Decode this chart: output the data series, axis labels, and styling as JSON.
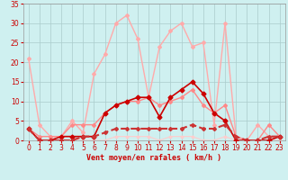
{
  "background_color": "#cff0f0",
  "grid_color": "#aacccc",
  "xlabel": "Vent moyen/en rafales ( km/h )",
  "xlabel_color": "#cc0000",
  "tick_color": "#cc0000",
  "xlim": [
    -0.5,
    23.5
  ],
  "ylim": [
    0,
    35
  ],
  "yticks": [
    0,
    5,
    10,
    15,
    20,
    25,
    30,
    35
  ],
  "xticks": [
    0,
    1,
    2,
    3,
    4,
    5,
    6,
    7,
    8,
    9,
    10,
    11,
    12,
    13,
    14,
    15,
    16,
    17,
    18,
    19,
    20,
    21,
    22,
    23
  ],
  "series": [
    {
      "x": [
        0,
        1,
        2,
        3,
        4,
        5,
        6,
        7,
        8,
        9,
        10,
        11,
        12,
        13,
        14,
        15,
        16,
        17,
        18,
        19,
        20,
        21,
        22,
        23
      ],
      "y": [
        21,
        4,
        1,
        1,
        5,
        2,
        17,
        22,
        30,
        32,
        26,
        11,
        24,
        28,
        30,
        24,
        25,
        4,
        30,
        1,
        0,
        4,
        1,
        1
      ],
      "color": "#ffaaaa",
      "linewidth": 1.0,
      "marker": "D",
      "markersize": 2.0,
      "linestyle": "-",
      "zorder": 2
    },
    {
      "x": [
        0,
        1,
        2,
        3,
        4,
        5,
        6,
        7,
        8,
        9,
        10,
        11,
        12,
        13,
        14,
        15,
        16,
        17,
        18,
        19,
        20,
        21,
        22,
        23
      ],
      "y": [
        3,
        1,
        1,
        1,
        4,
        4,
        4,
        7,
        9,
        10,
        10,
        11,
        9,
        10,
        11,
        13,
        9,
        7,
        9,
        1,
        0,
        0,
        4,
        1
      ],
      "color": "#ff8888",
      "linewidth": 1.0,
      "marker": "D",
      "markersize": 2.0,
      "linestyle": "-",
      "zorder": 3
    },
    {
      "x": [
        0,
        1,
        2,
        3,
        4,
        5,
        6,
        7,
        8,
        9,
        10,
        11,
        12,
        13,
        14,
        15,
        16,
        17,
        18,
        19,
        20,
        21,
        22,
        23
      ],
      "y": [
        3,
        0,
        0,
        1,
        1,
        1,
        1,
        7,
        9,
        10,
        11,
        11,
        6,
        11,
        13,
        15,
        12,
        7,
        5,
        0,
        0,
        0,
        0,
        1
      ],
      "color": "#cc0000",
      "linewidth": 1.2,
      "marker": "D",
      "markersize": 2.5,
      "linestyle": "-",
      "zorder": 4
    },
    {
      "x": [
        0,
        1,
        2,
        3,
        4,
        5,
        6,
        7,
        8,
        9,
        10,
        11,
        12,
        13,
        14,
        15,
        16,
        17,
        18,
        19,
        20,
        21,
        22,
        23
      ],
      "y": [
        3,
        0,
        0,
        0,
        0,
        1,
        1,
        2,
        3,
        3,
        3,
        3,
        3,
        3,
        3,
        4,
        3,
        3,
        4,
        1,
        0,
        0,
        1,
        1
      ],
      "color": "#cc3333",
      "linewidth": 1.5,
      "marker": "D",
      "markersize": 2.0,
      "linestyle": "--",
      "zorder": 5
    },
    {
      "x": [
        0,
        1,
        2,
        3,
        4,
        5,
        6,
        7,
        8,
        9,
        10,
        11,
        12,
        13,
        14,
        15,
        16,
        17,
        18,
        19,
        20,
        21,
        22,
        23
      ],
      "y": [
        3,
        0,
        0,
        0,
        0,
        0,
        0,
        0,
        1,
        1,
        1,
        1,
        0,
        1,
        1,
        1,
        0,
        0,
        1,
        0,
        0,
        0,
        0,
        0
      ],
      "color": "#ffcccc",
      "linewidth": 0.8,
      "marker": "D",
      "markersize": 1.5,
      "linestyle": "-",
      "zorder": 2
    }
  ]
}
